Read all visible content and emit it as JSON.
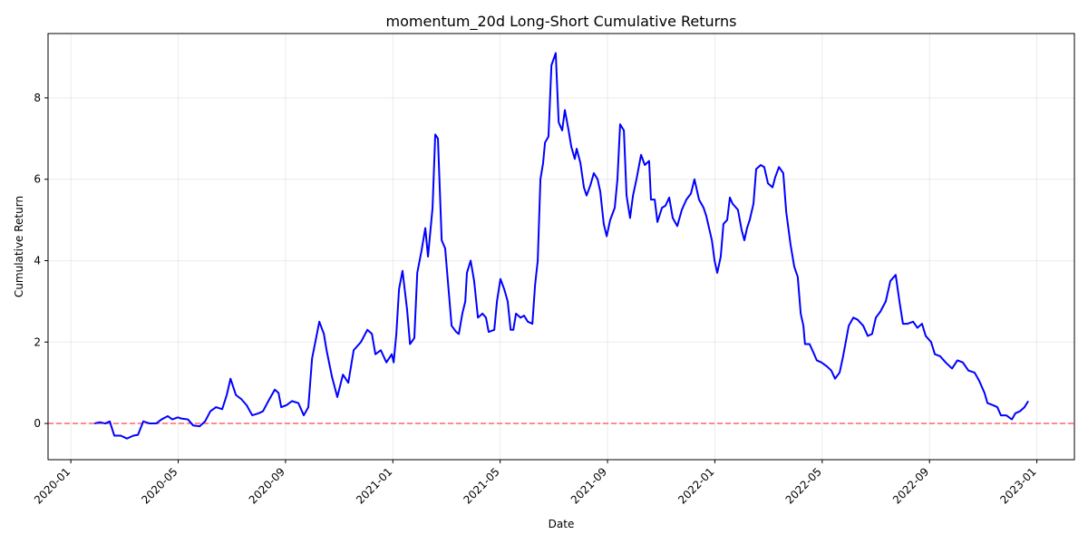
{
  "chart_data": {
    "type": "line",
    "title": "momentum_20d Long-Short Cumulative Returns",
    "x_label": "Date",
    "y_label": "Cumulative Return",
    "x": [
      0.88,
      1.08,
      1.28,
      1.45,
      1.62,
      1.86,
      2.09,
      2.33,
      2.5,
      2.7,
      2.94,
      3.18,
      3.38,
      3.61,
      3.78,
      3.99,
      4.12,
      4.36,
      4.56,
      4.8,
      5.0,
      5.2,
      5.41,
      5.64,
      5.81,
      5.95,
      6.15,
      6.35,
      6.55,
      6.76,
      7.0,
      7.16,
      7.36,
      7.6,
      7.74,
      7.84,
      8.04,
      8.24,
      8.48,
      8.68,
      8.85,
      8.99,
      9.26,
      9.43,
      9.53,
      9.73,
      9.93,
      10.14,
      10.34,
      10.54,
      10.81,
      11.05,
      11.22,
      11.35,
      11.55,
      11.76,
      11.96,
      12.03,
      12.13,
      12.23,
      12.36,
      12.53,
      12.64,
      12.8,
      12.91,
      13.07,
      13.21,
      13.31,
      13.48,
      13.58,
      13.68,
      13.82,
      13.95,
      14.05,
      14.19,
      14.36,
      14.46,
      14.59,
      14.7,
      14.76,
      14.9,
      15.03,
      15.17,
      15.34,
      15.47,
      15.57,
      15.78,
      15.88,
      16.01,
      16.15,
      16.28,
      16.39,
      16.49,
      16.59,
      16.76,
      16.89,
      17.03,
      17.2,
      17.3,
      17.4,
      17.5,
      17.6,
      17.67,
      17.8,
      17.91,
      18.07,
      18.18,
      18.31,
      18.41,
      18.55,
      18.65,
      18.78,
      18.85,
      18.99,
      19.12,
      19.22,
      19.36,
      19.49,
      19.63,
      19.73,
      19.86,
      19.97,
      20.1,
      20.27,
      20.37,
      20.47,
      20.61,
      20.71,
      20.84,
      20.95,
      21.08,
      21.25,
      21.39,
      21.55,
      21.62,
      21.76,
      21.86,
      22.03,
      22.16,
      22.3,
      22.43,
      22.6,
      22.77,
      22.94,
      23.11,
      23.24,
      23.41,
      23.58,
      23.68,
      23.89,
      23.99,
      24.09,
      24.22,
      24.32,
      24.46,
      24.56,
      24.66,
      24.86,
      25.0,
      25.1,
      25.2,
      25.3,
      25.44,
      25.54,
      25.71,
      25.84,
      25.98,
      26.15,
      26.25,
      26.39,
      26.55,
      26.66,
      26.82,
      26.96,
      27.09,
      27.2,
      27.3,
      27.36,
      27.53,
      27.67,
      27.8,
      27.97,
      28.18,
      28.34,
      28.48,
      28.65,
      28.78,
      28.99,
      29.16,
      29.32,
      29.53,
      29.7,
      29.86,
      30.0,
      30.17,
      30.37,
      30.54,
      30.74,
      30.88,
      31.01,
      31.18,
      31.39,
      31.55,
      31.72,
      31.86,
      32.06,
      32.2,
      32.4,
      32.6,
      32.84,
      33.04,
      33.24,
      33.45,
      33.68,
      33.85,
      34.05,
      34.16,
      34.36,
      34.53,
      34.66,
      34.86,
      35.07,
      35.2,
      35.37,
      35.54,
      35.68
    ],
    "series": [
      {
        "color": "#0000ff",
        "values": [
          0.0,
          0.03,
          0.0,
          0.05,
          -0.3,
          -0.3,
          -0.37,
          -0.3,
          -0.28,
          0.05,
          0.0,
          0.0,
          0.1,
          0.18,
          0.1,
          0.15,
          0.12,
          0.1,
          -0.05,
          -0.07,
          0.05,
          0.3,
          0.4,
          0.35,
          0.7,
          1.1,
          0.7,
          0.6,
          0.45,
          0.2,
          0.25,
          0.3,
          0.55,
          0.83,
          0.75,
          0.4,
          0.45,
          0.55,
          0.5,
          0.2,
          0.4,
          1.6,
          2.5,
          2.2,
          1.8,
          1.15,
          0.65,
          1.2,
          1.0,
          1.8,
          2.0,
          2.3,
          2.2,
          1.7,
          1.8,
          1.5,
          1.7,
          1.5,
          2.2,
          3.3,
          3.75,
          2.8,
          1.95,
          2.1,
          3.7,
          4.25,
          4.8,
          4.1,
          5.3,
          7.1,
          7.0,
          4.5,
          4.3,
          3.5,
          2.4,
          2.25,
          2.2,
          2.7,
          3.0,
          3.7,
          4.0,
          3.5,
          2.6,
          2.7,
          2.6,
          2.25,
          2.3,
          3.0,
          3.55,
          3.3,
          3.0,
          2.3,
          2.3,
          2.7,
          2.6,
          2.65,
          2.5,
          2.45,
          3.4,
          4.0,
          6.0,
          6.4,
          6.9,
          7.05,
          8.8,
          9.1,
          7.4,
          7.2,
          7.7,
          7.2,
          6.8,
          6.5,
          6.75,
          6.4,
          5.8,
          5.6,
          5.85,
          6.15,
          6.0,
          5.7,
          4.9,
          4.6,
          5.0,
          5.3,
          6.0,
          7.35,
          7.2,
          5.6,
          5.05,
          5.6,
          6.0,
          6.6,
          6.35,
          6.45,
          5.5,
          5.5,
          4.95,
          5.3,
          5.35,
          5.55,
          5.05,
          4.85,
          5.25,
          5.5,
          5.65,
          6.0,
          5.5,
          5.3,
          5.1,
          4.5,
          4.0,
          3.7,
          4.1,
          4.9,
          5.0,
          5.55,
          5.4,
          5.25,
          4.75,
          4.5,
          4.8,
          5.0,
          5.4,
          6.25,
          6.35,
          6.3,
          5.9,
          5.8,
          6.05,
          6.3,
          6.15,
          5.2,
          4.4,
          3.85,
          3.6,
          2.7,
          2.4,
          1.95,
          1.95,
          1.75,
          1.55,
          1.5,
          1.4,
          1.3,
          1.1,
          1.25,
          1.65,
          2.4,
          2.6,
          2.55,
          2.4,
          2.15,
          2.2,
          2.6,
          2.75,
          3.0,
          3.5,
          3.65,
          3.0,
          2.45,
          2.45,
          2.5,
          2.35,
          2.45,
          2.15,
          2.0,
          1.7,
          1.65,
          1.5,
          1.35,
          1.55,
          1.5,
          1.3,
          1.25,
          1.05,
          0.75,
          0.5,
          0.45,
          0.4,
          0.2,
          0.2,
          0.1,
          0.25,
          0.3,
          0.4,
          0.55
        ]
      }
    ],
    "reference_line": {
      "value": 0,
      "color": "#ff6666"
    },
    "xlim": [
      -0.85,
      37.4
    ],
    "xticks": [
      {
        "value": 0,
        "label": "2020-01"
      },
      {
        "value": 4,
        "label": "2020-05"
      },
      {
        "value": 8,
        "label": "2020-09"
      },
      {
        "value": 12,
        "label": "2021-01"
      },
      {
        "value": 16,
        "label": "2021-05"
      },
      {
        "value": 20,
        "label": "2021-09"
      },
      {
        "value": 24,
        "label": "2022-01"
      },
      {
        "value": 28,
        "label": "2022-05"
      },
      {
        "value": 32,
        "label": "2022-09"
      },
      {
        "value": 36,
        "label": "2023-01"
      }
    ],
    "ylim": [
      -0.89,
      9.58
    ],
    "yticks": [
      0,
      2,
      4,
      6,
      8
    ],
    "grid": true
  }
}
